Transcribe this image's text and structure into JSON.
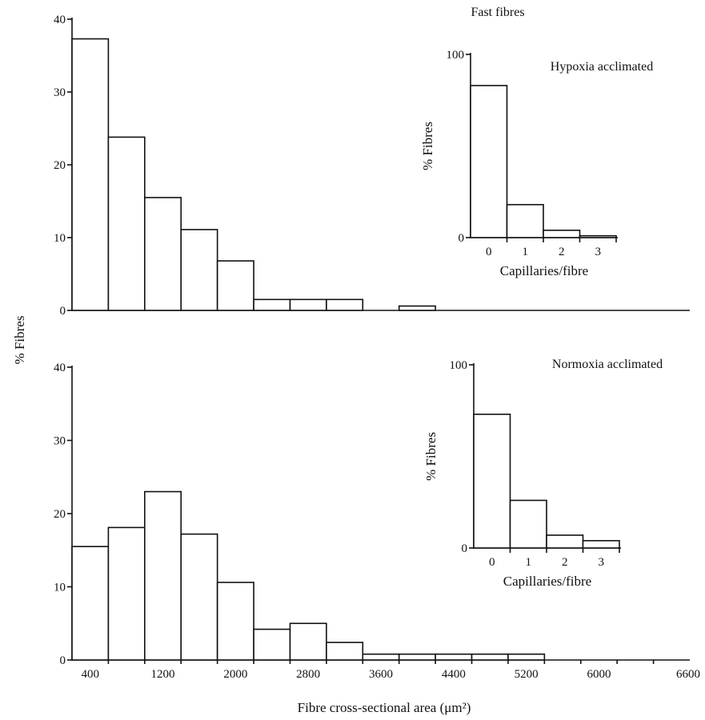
{
  "figure": {
    "shared_ylabel": "% Fibres",
    "shared_xlabel": "Fibre cross-sectional area (μm²)"
  },
  "chart_data": [
    {
      "id": "fast-hypoxia-main",
      "type": "bar",
      "title": "Fast fibres",
      "bin_edges": [
        0,
        400,
        800,
        1200,
        1600,
        2000,
        2400,
        2800,
        3200,
        3600,
        4000
      ],
      "values": [
        37.3,
        23.8,
        15.5,
        11.1,
        6.8,
        1.5,
        1.5,
        1.5,
        0,
        0.6
      ],
      "xlim": [
        0,
        6800
      ],
      "ylim": [
        0,
        40
      ],
      "yticks": [
        0,
        10,
        20,
        30,
        40
      ],
      "ylabel": "% Fibres",
      "xlabel": "Fibre cross-sectional area (μm²)"
    },
    {
      "id": "fast-hypoxia-inset",
      "type": "bar",
      "title": "Hypoxia acclimated",
      "categories": [
        "0",
        "1",
        "2",
        "3"
      ],
      "values": [
        83,
        18,
        4,
        1
      ],
      "ylim": [
        0,
        100
      ],
      "yticks": [
        0,
        100
      ],
      "ylabel": "% Fibres",
      "xlabel": "Capillaries/fibre"
    },
    {
      "id": "fast-normoxia-main",
      "type": "bar",
      "bin_edges": [
        0,
        400,
        800,
        1200,
        1600,
        2000,
        2400,
        2800,
        3200,
        3600,
        4000,
        4400,
        4800,
        5200
      ],
      "values": [
        15.5,
        18.1,
        23.0,
        17.2,
        10.6,
        4.2,
        5.0,
        2.4,
        0.8,
        0.8,
        0.8,
        0.8,
        0.8
      ],
      "xlim": [
        0,
        6800
      ],
      "ylim": [
        0,
        40
      ],
      "yticks": [
        0,
        10,
        20,
        30,
        40
      ],
      "xticks": [
        400,
        1200,
        2000,
        2800,
        3600,
        4400,
        5200,
        6000,
        6600
      ],
      "ylabel": "% Fibres",
      "xlabel": "Fibre cross-sectional area (μm²)"
    },
    {
      "id": "fast-normoxia-inset",
      "type": "bar",
      "title": "Normoxia acclimated",
      "categories": [
        "0",
        "1",
        "2",
        "3"
      ],
      "values": [
        73,
        26,
        7,
        4
      ],
      "ylim": [
        0,
        100
      ],
      "yticks": [
        0,
        100
      ],
      "ylabel": "% Fibres",
      "xlabel": "Capillaries/fibre"
    }
  ]
}
